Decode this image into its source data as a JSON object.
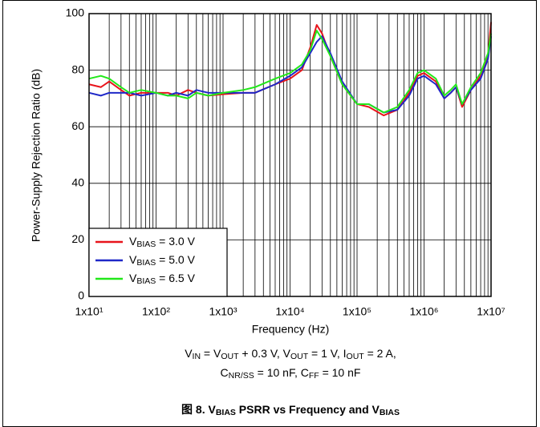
{
  "chart_data": {
    "type": "line",
    "title": [
      "图 8. V",
      "BIAS",
      " PSRR vs Frequency and V",
      "BIAS"
    ],
    "xlabel": "Frequency (Hz)",
    "ylabel": "Power-Supply Rejection Ratio (dB)",
    "annotation_lines": [
      [
        "V",
        "IN",
        " = V",
        "OUT",
        " + 0.3 V, V",
        "OUT",
        " = 1 V, I",
        "OUT",
        " = 2 A,"
      ],
      [
        "C",
        "NR/SS",
        " = 10 nF, C",
        "FF",
        " = 10 nF"
      ]
    ],
    "xscale": "log",
    "grid": true,
    "minor_grid": true,
    "legend": "lower left",
    "xlim": [
      10,
      10000000
    ],
    "ylim": [
      0,
      100
    ],
    "xticks": [
      {
        "value": 10,
        "label": "1x10¹"
      },
      {
        "value": 100,
        "label": "1x10²"
      },
      {
        "value": 1000,
        "label": "1x10³"
      },
      {
        "value": 10000,
        "label": "1x10⁴"
      },
      {
        "value": 100000,
        "label": "1x10⁵"
      },
      {
        "value": 1000000,
        "label": "1x10⁶"
      },
      {
        "value": 10000000,
        "label": "1x10⁷"
      }
    ],
    "yticks": [
      0,
      20,
      40,
      60,
      80,
      100
    ],
    "x": [
      10,
      15,
      20,
      30,
      40,
      60,
      100,
      150,
      200,
      300,
      400,
      600,
      1000,
      2000,
      3000,
      6000,
      10000,
      15000,
      20000,
      25000,
      30000,
      40000,
      60000,
      100000,
      150000,
      250000,
      400000,
      600000,
      800000,
      1000000,
      1500000,
      2000000,
      2500000,
      3000000,
      3700000,
      5000000,
      7000000,
      9000000,
      10000000
    ],
    "series": [
      {
        "name": [
          "V",
          "BIAS",
          " = 3.0 V"
        ],
        "color": "#e8141b",
        "values": [
          75,
          74,
          76,
          73,
          71,
          72,
          72,
          72,
          71,
          73,
          72,
          71,
          71.5,
          72,
          72,
          75,
          77,
          80,
          88,
          96,
          93,
          85,
          75,
          68,
          67,
          64,
          66,
          72,
          78,
          79,
          76,
          70,
          72,
          74,
          67,
          73,
          78,
          85,
          97
        ]
      },
      {
        "name": [
          "V",
          "BIAS",
          " = 5.0 V"
        ],
        "color": "#1f28c8",
        "values": [
          72,
          71,
          72,
          72,
          72,
          71,
          72,
          71,
          72,
          71,
          73,
          72,
          72,
          72,
          72,
          75,
          78,
          81,
          86,
          90,
          92,
          86,
          76,
          68,
          68,
          65,
          66,
          71,
          77,
          78,
          75,
          70,
          72,
          74,
          68,
          73,
          77,
          84,
          92
        ]
      },
      {
        "name": [
          "V",
          "BIAS",
          " = 6.5 V"
        ],
        "color": "#22e81a",
        "values": [
          77,
          78,
          77,
          74,
          72,
          73,
          72,
          71,
          71,
          70,
          72,
          71,
          72,
          73,
          74,
          77,
          79,
          82,
          87,
          94,
          91,
          85,
          75,
          68,
          68,
          65,
          67,
          73,
          79,
          80,
          77,
          71,
          73,
          75,
          68,
          74,
          79,
          86,
          93
        ]
      }
    ]
  }
}
